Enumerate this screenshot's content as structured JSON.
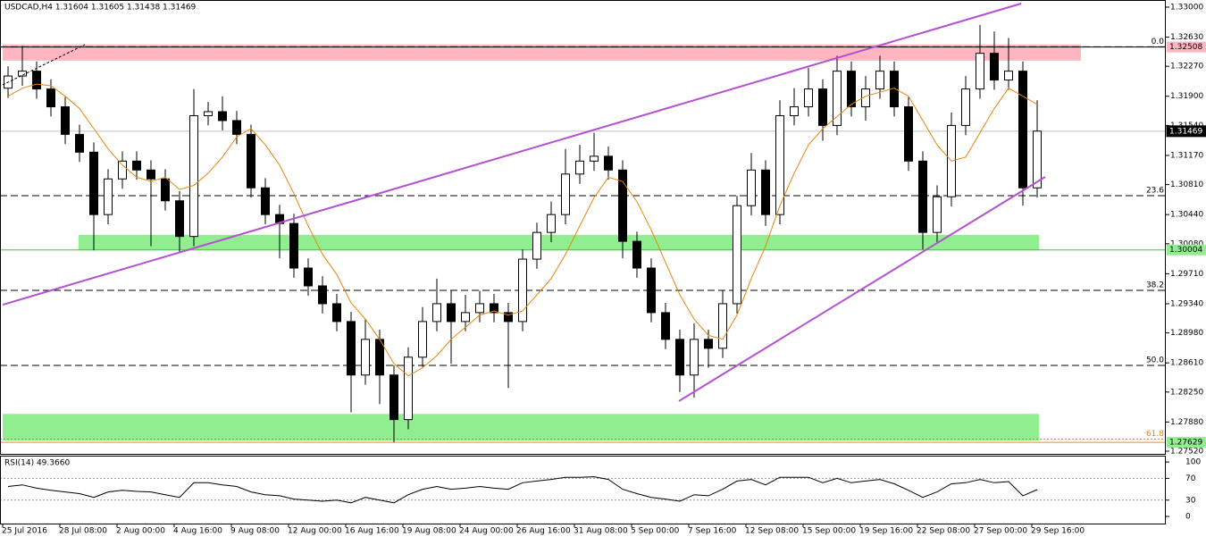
{
  "chart_data": {
    "type": "candlestick",
    "title": "USDCAD,H4  1.31604 1.31605 1.31438 1.31469",
    "xlim": [
      -0.75,
      325.5
    ],
    "ylim": [
      1.27487,
      1.33088
    ],
    "xticks": [
      {
        "value": 0,
        "label": "25 Jul 2016"
      },
      {
        "value": 16,
        "label": "28 Jul 08:00"
      },
      {
        "value": 32,
        "label": "2 Aug 00:00"
      },
      {
        "value": 48,
        "label": "4 Aug 16:00"
      },
      {
        "value": 64,
        "label": "9 Aug 08:00"
      },
      {
        "value": 80,
        "label": "12 Aug 00:00"
      },
      {
        "value": 96,
        "label": "16 Aug 16:00"
      },
      {
        "value": 112,
        "label": "19 Aug 08:00"
      },
      {
        "value": 128,
        "label": "24 Aug 00:00"
      },
      {
        "value": 144,
        "label": "26 Aug 16:00"
      },
      {
        "value": 160,
        "label": "31 Aug 08:00"
      },
      {
        "value": 176,
        "label": "5 Sep 00:00"
      },
      {
        "value": 192,
        "label": "7 Sep 16:00"
      },
      {
        "value": 208,
        "label": "12 Sep 08:00"
      },
      {
        "value": 224,
        "label": "15 Sep 00:00"
      },
      {
        "value": 240,
        "label": "19 Sep 16:00"
      },
      {
        "value": 256,
        "label": "22 Sep 08:00"
      },
      {
        "value": 272,
        "label": "27 Sep 00:00"
      },
      {
        "value": 288,
        "label": "29 Sep 16:00"
      }
    ],
    "yticks": [
      {
        "value": 1.33,
        "label": "1.33000"
      },
      {
        "value": 1.3263,
        "label": "1.32630"
      },
      {
        "value": 1.3227,
        "label": "1.32270"
      },
      {
        "value": 1.319,
        "label": "1.31900"
      },
      {
        "value": 1.3154,
        "label": "1.31540"
      },
      {
        "value": 1.3117,
        "label": "1.31170"
      },
      {
        "value": 1.3081,
        "label": "1.30810"
      },
      {
        "value": 1.3044,
        "label": "1.30440"
      },
      {
        "value": 1.3008,
        "label": "1.30080"
      },
      {
        "value": 1.2971,
        "label": "1.29710"
      },
      {
        "value": 1.2934,
        "label": "1.29340"
      },
      {
        "value": 1.2898,
        "label": "1.28980"
      },
      {
        "value": 1.2861,
        "label": "1.28610"
      },
      {
        "value": 1.2825,
        "label": "1.28250"
      },
      {
        "value": 1.2788,
        "label": "1.27880"
      },
      {
        "value": 1.2752,
        "label": "1.27520"
      }
    ],
    "x": [
      1.5,
      5.5,
      9.5,
      13.5,
      17.5,
      21.5,
      25.5,
      29.5,
      33.5,
      37.5,
      41.5,
      45.5,
      49.5,
      53.5,
      57.5,
      61.5,
      65.5,
      69.5,
      73.5,
      77.5,
      81.5,
      85.5,
      89.5,
      93.5,
      97.5,
      101.5,
      105.5,
      109.5,
      113.5,
      117.5,
      121.5,
      125.5,
      129.5,
      133.5,
      137.5,
      141.5,
      145.5,
      149.5,
      153.5,
      157.5,
      161.5,
      165.5,
      169.5,
      173.5,
      177.5,
      181.5,
      185.5,
      189.5,
      193.5,
      197.5,
      201.5,
      205.5,
      209.5,
      213.5,
      217.5,
      221.5,
      225.5,
      229.5,
      233.5,
      237.5,
      241.5,
      245.5,
      249.5,
      253.5,
      257.5,
      261.5,
      265.5,
      269.5,
      273.5,
      277.5,
      281.5,
      285.5,
      289.5
    ],
    "open": [
      1.32,
      1.3215,
      1.3221,
      1.3199,
      1.3177,
      1.3143,
      1.3121,
      1.3044,
      1.3088,
      1.311,
      1.3099,
      1.3088,
      1.3061,
      1.3017,
      1.3166,
      1.3171,
      1.316,
      1.3143,
      1.3077,
      1.3044,
      1.3033,
      1.2978,
      1.2956,
      1.2934,
      1.2912,
      1.2846,
      1.289,
      1.2846,
      1.2791,
      1.2868,
      1.2912,
      1.2934,
      1.2912,
      1.2923,
      1.2934,
      1.2923,
      1.2912,
      1.2989,
      1.3022,
      1.3044,
      1.3094,
      1.311,
      1.3116,
      1.3099,
      1.3011,
      1.2978,
      1.2923,
      1.289,
      1.2846,
      1.289,
      1.2879,
      1.2934,
      1.3055,
      1.3099,
      1.3044,
      1.3166,
      1.3177,
      1.3199,
      1.3154,
      1.3221,
      1.3177,
      1.3199,
      1.3221,
      1.3177,
      1.311,
      1.3022,
      1.3066,
      1.3154,
      1.3199,
      1.3243,
      1.321,
      1.3221,
      1.3077
    ],
    "high": [
      1.3227,
      1.3252,
      1.3233,
      1.3211,
      1.3189,
      1.3155,
      1.3133,
      1.31,
      1.3122,
      1.3122,
      1.3111,
      1.31,
      1.3073,
      1.3199,
      1.3183,
      1.319,
      1.3172,
      1.3155,
      1.3089,
      1.3056,
      1.3045,
      1.299,
      1.2968,
      1.2946,
      1.2924,
      1.2915,
      1.2902,
      1.2858,
      1.288,
      1.293,
      1.2965,
      1.295,
      1.2945,
      1.295,
      1.2946,
      1.2935,
      1.3001,
      1.3034,
      1.306,
      1.3125,
      1.313,
      1.3145,
      1.3128,
      1.3111,
      1.3023,
      1.299,
      1.2935,
      1.2902,
      1.291,
      1.2902,
      1.295,
      1.3067,
      1.312,
      1.3111,
      1.3185,
      1.32,
      1.3225,
      1.3211,
      1.324,
      1.3233,
      1.3215,
      1.324,
      1.3233,
      1.3189,
      1.3122,
      1.308,
      1.317,
      1.3215,
      1.3278,
      1.327,
      1.3262,
      1.3233,
      1.3185
    ],
    "low": [
      1.3188,
      1.3203,
      1.3187,
      1.3165,
      1.3131,
      1.3109,
      1.3,
      1.3032,
      1.3076,
      1.3087,
      1.3005,
      1.3049,
      1.2997,
      1.3005,
      1.3154,
      1.3148,
      1.3131,
      1.3065,
      1.3032,
      1.299,
      1.2966,
      1.2944,
      1.2922,
      1.29,
      1.28,
      1.2834,
      1.281,
      1.2763,
      1.2779,
      1.2856,
      1.29,
      1.286,
      1.29,
      1.2911,
      1.2911,
      1.283,
      1.29,
      1.2977,
      1.301,
      1.3032,
      1.3082,
      1.3098,
      1.3087,
      1.299,
      1.2966,
      1.2911,
      1.2878,
      1.2825,
      1.2818,
      1.2855,
      1.2867,
      1.2922,
      1.3043,
      1.303,
      1.3032,
      1.3154,
      1.3165,
      1.3135,
      1.3142,
      1.3165,
      1.316,
      1.3187,
      1.3165,
      1.3098,
      1.3001,
      1.301,
      1.3054,
      1.3142,
      1.3187,
      1.3198,
      1.3198,
      1.3055,
      1.3065
    ],
    "close": [
      1.3215,
      1.3221,
      1.3199,
      1.3177,
      1.3143,
      1.3121,
      1.3044,
      1.3088,
      1.311,
      1.3099,
      1.3088,
      1.3061,
      1.3017,
      1.3166,
      1.3171,
      1.316,
      1.3143,
      1.3077,
      1.3044,
      1.3033,
      1.2978,
      1.2956,
      1.2934,
      1.2912,
      1.2846,
      1.289,
      1.2846,
      1.2791,
      1.2868,
      1.2912,
      1.2934,
      1.2912,
      1.2923,
      1.2934,
      1.2923,
      1.2912,
      1.2989,
      1.3022,
      1.3044,
      1.3094,
      1.311,
      1.3116,
      1.3099,
      1.3011,
      1.2978,
      1.2923,
      1.289,
      1.2846,
      1.289,
      1.2879,
      1.2934,
      1.3055,
      1.3099,
      1.3044,
      1.3166,
      1.3177,
      1.3199,
      1.3154,
      1.3221,
      1.3177,
      1.3199,
      1.3221,
      1.3177,
      1.311,
      1.3022,
      1.3066,
      1.3154,
      1.3199,
      1.3243,
      1.321,
      1.3221,
      1.3077,
      1.3147
    ],
    "ma": {
      "color": "#e8850f",
      "values": [
        1.319,
        1.32,
        1.3205,
        1.3203,
        1.319,
        1.3175,
        1.315,
        1.3125,
        1.3105,
        1.309,
        1.3085,
        1.309,
        1.3075,
        1.308,
        1.3095,
        1.3115,
        1.314,
        1.315,
        1.313,
        1.3105,
        1.307,
        1.303,
        1.2995,
        1.297,
        1.2935,
        1.2915,
        1.289,
        1.286,
        1.2845,
        1.2855,
        1.287,
        1.289,
        1.2905,
        1.292,
        1.2925,
        1.292,
        1.2925,
        1.2945,
        1.2965,
        1.2995,
        1.303,
        1.3065,
        1.309,
        1.3085,
        1.306,
        1.3025,
        1.2985,
        1.2945,
        1.2915,
        1.2895,
        1.289,
        1.292,
        1.2965,
        1.3005,
        1.3055,
        1.3095,
        1.313,
        1.315,
        1.3165,
        1.318,
        1.319,
        1.3195,
        1.32,
        1.319,
        1.316,
        1.313,
        1.311,
        1.3115,
        1.3145,
        1.3175,
        1.32,
        1.319,
        1.318
      ]
    },
    "zones": [
      {
        "x": [
          0,
          301.75
        ],
        "y": [
          1.3234,
          1.3254
        ],
        "color": "#ffb6c1"
      },
      {
        "x": [
          21.25,
          290
        ],
        "y": [
          1.3,
          1.3019
        ],
        "color": "#90ee90"
      },
      {
        "x": [
          0,
          290
        ],
        "y": [
          1.2765,
          1.2798
        ],
        "color": "#90ee90"
      }
    ],
    "trendlines": [
      {
        "x": [
          0,
          285
        ],
        "y": [
          1.29328,
          1.33044
        ],
        "color": "#b450d2"
      },
      {
        "x": [
          189.25,
          291.75
        ],
        "y": [
          1.28138,
          1.30905
        ],
        "color": "#b450d2"
      },
      {
        "x": [
          0,
          23
        ],
        "y": [
          1.32041,
          1.32537
        ],
        "color": "#000000",
        "dashed": true
      }
    ],
    "fib": [
      {
        "value": 1.3251,
        "label": "0.0",
        "color": "#000000"
      },
      {
        "value": 1.30673,
        "label": "23.6",
        "color": "#000000"
      },
      {
        "value": 1.29505,
        "label": "38.2",
        "color": "#000000"
      },
      {
        "value": 1.28578,
        "label": "50.0",
        "color": "#000000"
      },
      {
        "value": 1.2767,
        "label": "61.8",
        "color": "#e8850f"
      }
    ],
    "levels": [
      {
        "value": 1.32508,
        "label": "1.32508",
        "bg": "#ffb6c1",
        "fg": "#000000",
        "line": "#000000"
      },
      {
        "value": 1.31469,
        "label": "1.31469",
        "bg": "#000000",
        "fg": "#ffffff",
        "line": "#c0c0c0"
      },
      {
        "value": 1.30004,
        "label": "1.30004",
        "bg": "#90ee90",
        "fg": "#000000",
        "line": "#32cd32"
      },
      {
        "value": 1.27629,
        "label": "1.27629",
        "bg": "#90ee90",
        "fg": "#000000",
        "line": "#ff8c00"
      }
    ],
    "rsi": {
      "title": "RSI(14) 49.3660",
      "color": "#000000",
      "ylim": [
        -13,
        110
      ],
      "yticks": [
        0,
        30,
        70,
        100
      ],
      "levels": [
        30,
        70
      ],
      "values": [
        55,
        58,
        52,
        48,
        45,
        42,
        35,
        45,
        48,
        46,
        45,
        40,
        35,
        62,
        62,
        58,
        55,
        45,
        40,
        38,
        32,
        30,
        28,
        30,
        25,
        35,
        30,
        25,
        40,
        50,
        55,
        50,
        52,
        55,
        52,
        50,
        62,
        65,
        68,
        72,
        72,
        73,
        68,
        50,
        42,
        35,
        32,
        28,
        40,
        38,
        50,
        65,
        68,
        58,
        72,
        72,
        72,
        62,
        70,
        62,
        65,
        68,
        60,
        48,
        35,
        45,
        60,
        62,
        68,
        62,
        64,
        38,
        49.366
      ]
    }
  }
}
